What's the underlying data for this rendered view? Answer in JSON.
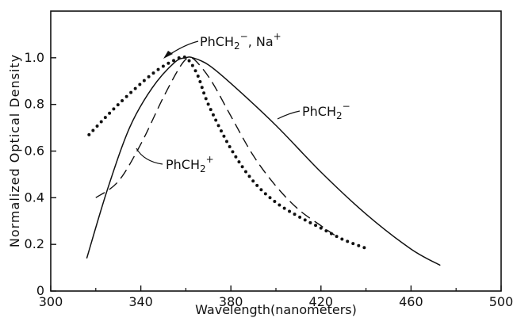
{
  "chart_data": {
    "type": "line",
    "title": "",
    "xlabel": "Wavelength(nanometers)",
    "ylabel": "Normalized Optical Density",
    "xlim": [
      300,
      500
    ],
    "ylim": [
      0,
      1.2
    ],
    "x_ticks": [
      300,
      340,
      380,
      420,
      460,
      500
    ],
    "y_ticks": [
      0,
      0.2,
      0.4,
      0.6,
      0.8,
      1.0
    ],
    "x_tick_labels": [
      "300",
      "340",
      "380",
      "420",
      "460",
      "500"
    ],
    "y_tick_labels": [
      "0",
      "0.2",
      "0.4",
      "0.6",
      "0.8",
      "1.0"
    ],
    "grid": false,
    "series": [
      {
        "name": "PhCH2⁻, Na⁺",
        "style": "dotted",
        "x": [
          317,
          330,
          345,
          355,
          360,
          365,
          370,
          380,
          390,
          400,
          410,
          420,
          430,
          441
        ],
        "y": [
          0.67,
          0.8,
          0.93,
          0.99,
          1.0,
          0.93,
          0.8,
          0.61,
          0.47,
          0.38,
          0.32,
          0.27,
          0.22,
          0.18
        ]
      },
      {
        "name": "PhCH2⁺",
        "style": "dashed",
        "x": [
          320,
          330,
          340,
          350,
          358,
          362,
          366,
          372,
          380,
          390,
          400,
          410,
          420,
          426
        ],
        "y": [
          0.4,
          0.47,
          0.63,
          0.83,
          0.97,
          1.0,
          0.97,
          0.89,
          0.75,
          0.58,
          0.45,
          0.35,
          0.28,
          0.24
        ]
      },
      {
        "name": "PhCH2⁻",
        "style": "solid",
        "x": [
          316,
          325,
          335,
          345,
          355,
          360,
          363,
          370,
          380,
          400,
          420,
          440,
          460,
          473
        ],
        "y": [
          0.14,
          0.43,
          0.7,
          0.87,
          0.98,
          1.0,
          1.0,
          0.97,
          0.89,
          0.71,
          0.51,
          0.33,
          0.18,
          0.11
        ]
      }
    ],
    "annotations": [
      {
        "text": "PhCH2⁻, Na⁺",
        "series": 0,
        "point_index": 3
      },
      {
        "text": "PhCH2⁺",
        "series": 1,
        "point_index": 2
      },
      {
        "text": "PhCH2⁻",
        "series": 2,
        "point_index": 9
      }
    ]
  }
}
